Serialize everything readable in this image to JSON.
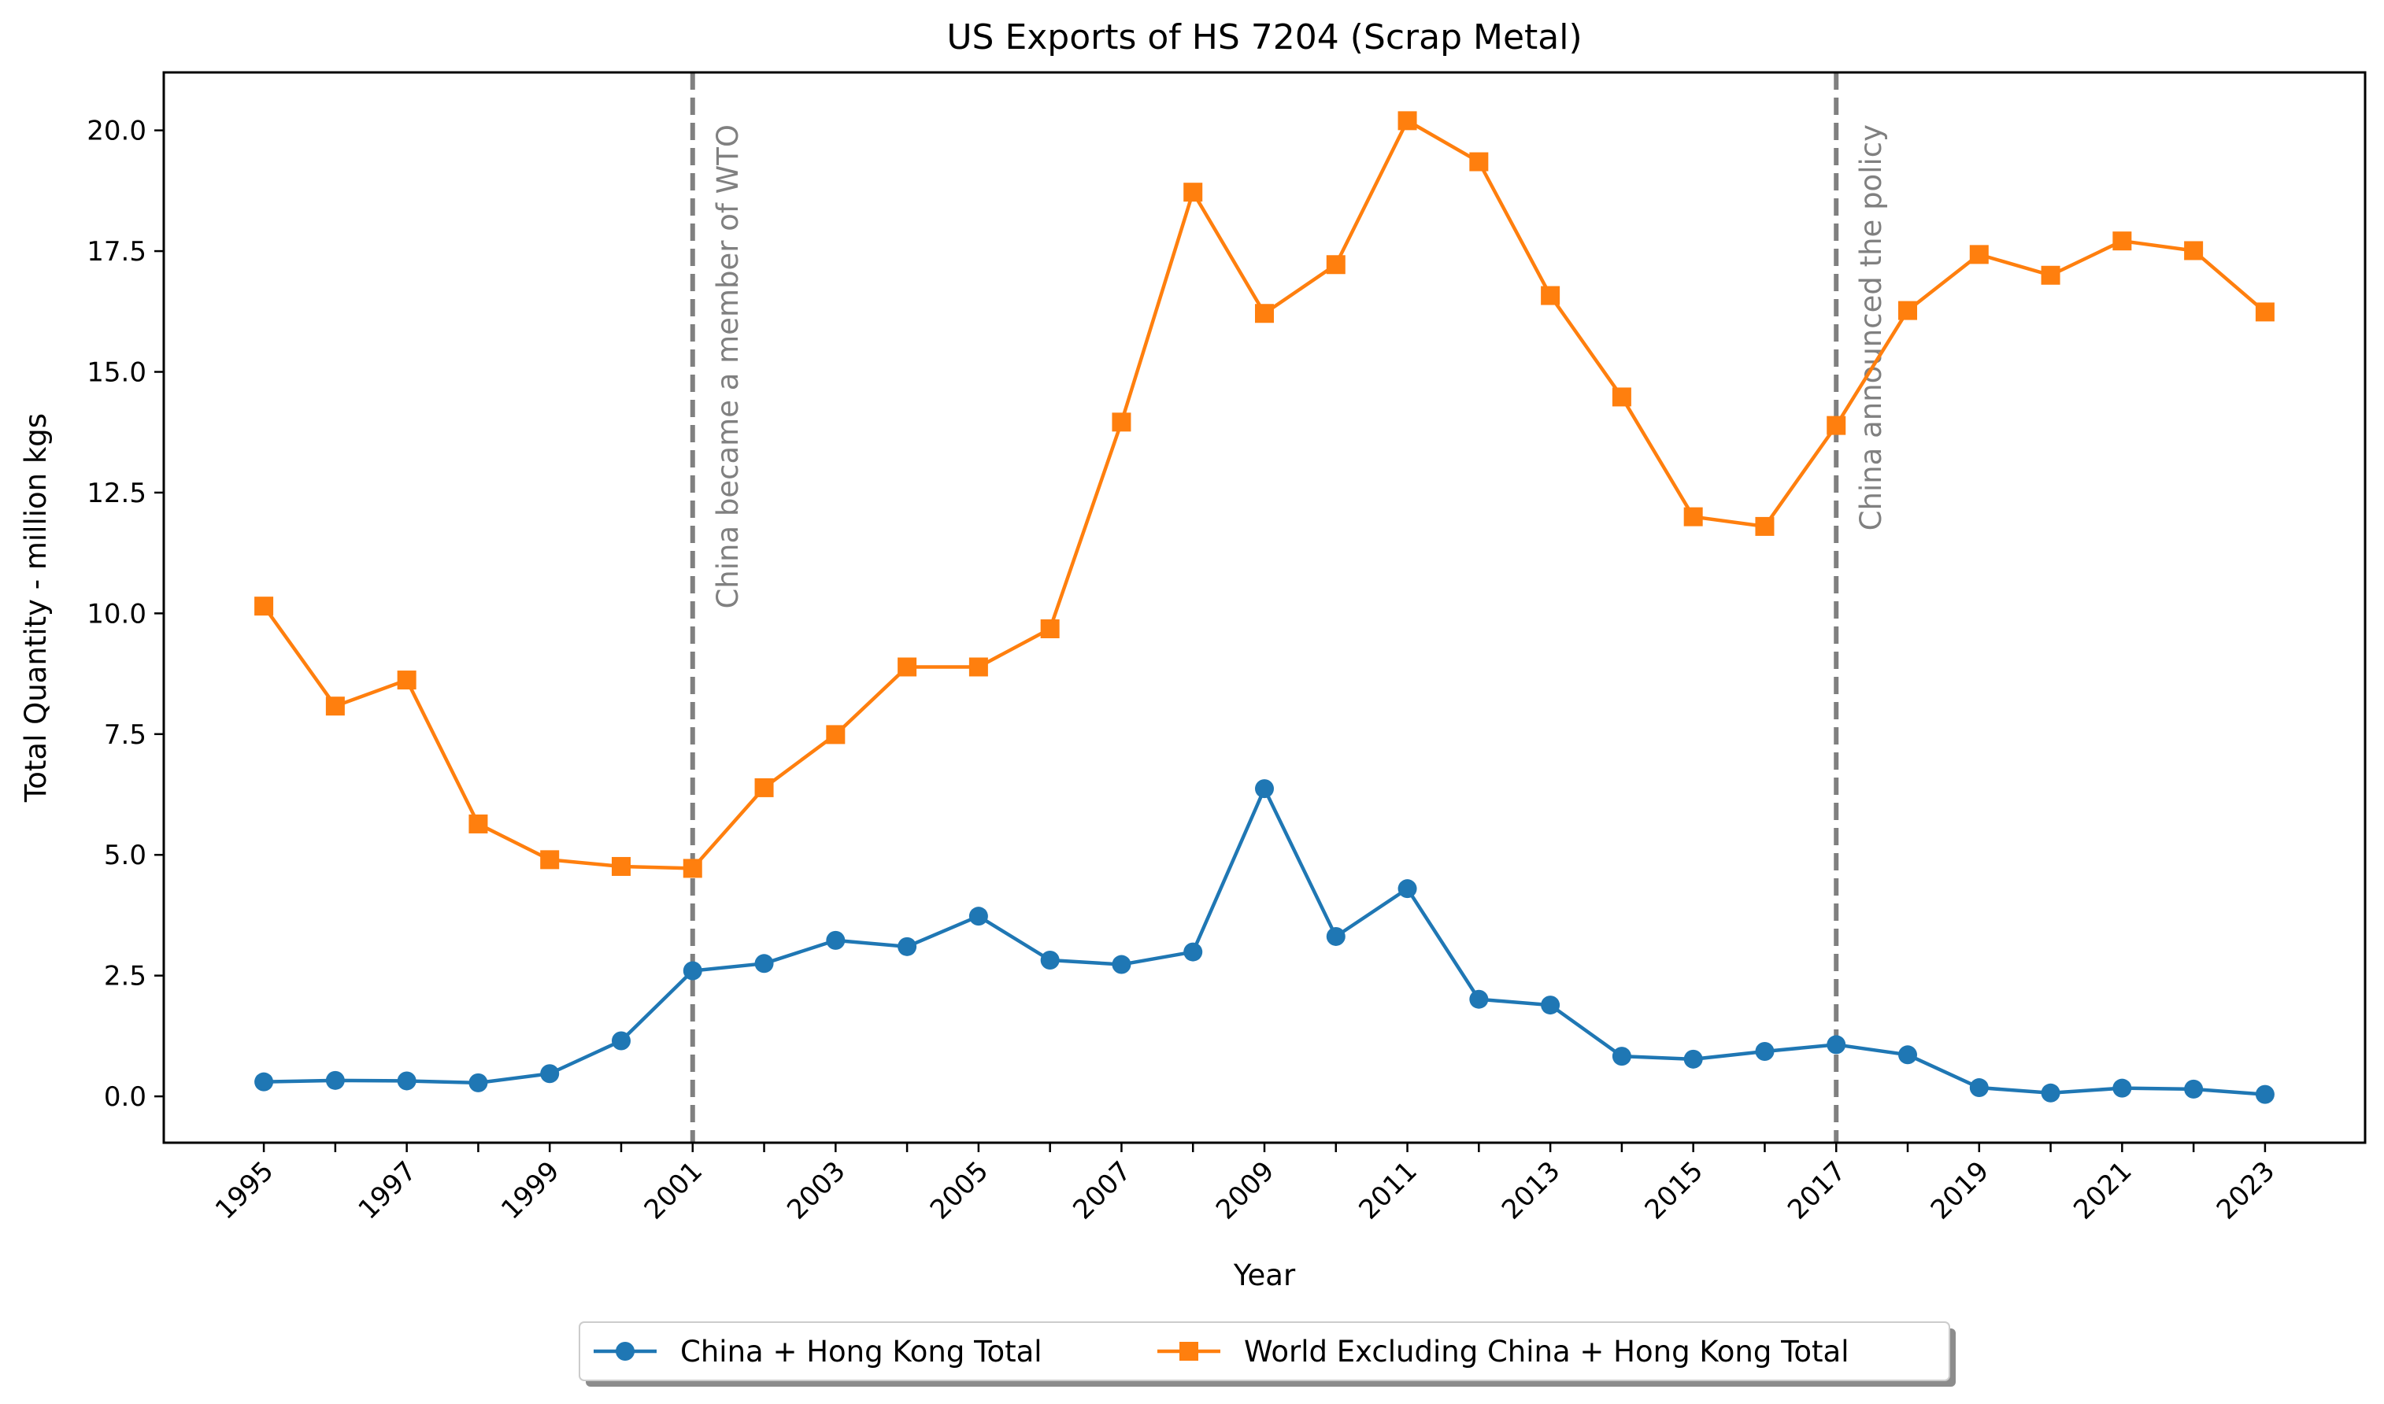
{
  "chart_data": {
    "type": "line",
    "title": "US Exports of HS 7204 (Scrap Metal)",
    "xlabel": "Year",
    "ylabel": "Total Quantity - million kgs",
    "xlim": [
      1993.6,
      2024.4
    ],
    "ylim": [
      -0.96,
      21.2
    ],
    "x": [
      1995,
      1996,
      1997,
      1998,
      1999,
      2000,
      2001,
      2002,
      2003,
      2004,
      2005,
      2006,
      2007,
      2008,
      2009,
      2010,
      2011,
      2012,
      2013,
      2014,
      2015,
      2016,
      2017,
      2018,
      2019,
      2020,
      2021,
      2022,
      2023
    ],
    "x_ticks": [
      "1995",
      "1997",
      "1999",
      "2001",
      "2003",
      "2005",
      "2007",
      "2009",
      "2011",
      "2013",
      "2015",
      "2017",
      "2019",
      "2021",
      "2023"
    ],
    "y_ticks": [
      "0.0",
      "2.5",
      "5.0",
      "7.5",
      "10.0",
      "12.5",
      "15.0",
      "17.5",
      "20.0"
    ],
    "series": [
      {
        "name": "China + Hong Kong Total",
        "color": "#1f77b4",
        "marker": "circle",
        "values": [
          0.3,
          0.33,
          0.32,
          0.28,
          0.47,
          1.15,
          2.6,
          2.75,
          3.23,
          3.1,
          3.73,
          2.82,
          2.73,
          2.99,
          6.37,
          3.31,
          4.3,
          2.01,
          1.89,
          0.83,
          0.77,
          0.93,
          1.07,
          0.86,
          0.18,
          0.07,
          0.17,
          0.15,
          0.04
        ]
      },
      {
        "name": "World Excluding China + Hong Kong Total",
        "color": "#ff7f0e",
        "marker": "square",
        "values": [
          10.15,
          8.08,
          8.62,
          5.64,
          4.9,
          4.76,
          4.72,
          6.39,
          7.49,
          8.89,
          8.89,
          9.68,
          13.96,
          18.72,
          16.21,
          17.22,
          20.2,
          19.35,
          16.58,
          14.48,
          12.0,
          11.8,
          13.89,
          16.27,
          17.43,
          17.0,
          17.71,
          17.51,
          16.24
        ]
      }
    ],
    "vlines": [
      {
        "x": 2001,
        "label": "China became a member of WTO",
        "color": "#808080",
        "style": "dashed"
      },
      {
        "x": 2017,
        "label": "China announced the policy",
        "color": "#808080",
        "style": "dashed"
      }
    ],
    "legend": {
      "placement": "bottom-center",
      "columns": 2
    },
    "grid": false
  }
}
